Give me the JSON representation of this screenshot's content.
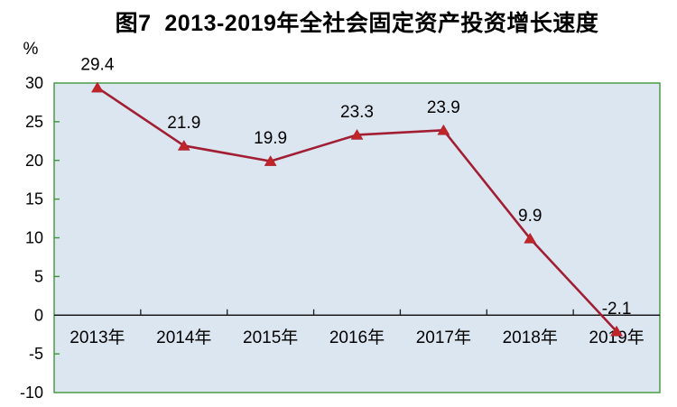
{
  "title": "图7  2013-2019年全社会固定资产投资增长速度",
  "y_axis_unit": "%",
  "chart_data": {
    "type": "line",
    "title": "图7 2013-2019年全社会固定资产投资增长速度",
    "categories": [
      "2013年",
      "2014年",
      "2015年",
      "2016年",
      "2017年",
      "2018年",
      "2019年"
    ],
    "series": [
      {
        "name": "全社会固定资产投资增长速度",
        "values": [
          29.4,
          21.9,
          19.9,
          23.3,
          23.9,
          9.9,
          -2.1
        ]
      }
    ],
    "data_labels": [
      "29.4",
      "21.9",
      "19.9",
      "23.3",
      "23.9",
      "9.9",
      "-2.1"
    ],
    "xlabel": "",
    "ylabel": "%",
    "ylim": [
      -10,
      30
    ],
    "ytick_step": 5,
    "yticks": [
      30,
      25,
      20,
      15,
      10,
      5,
      0,
      -5,
      -10
    ],
    "grid": false,
    "legend": "none",
    "marker": "triangle-up",
    "colors": {
      "line": "#a21e33",
      "marker": "#c02427",
      "plot_bg": "#dce6f1",
      "plot_border": "#3e9639",
      "zero_line": "#1a1a1a",
      "text": "#000000"
    }
  }
}
